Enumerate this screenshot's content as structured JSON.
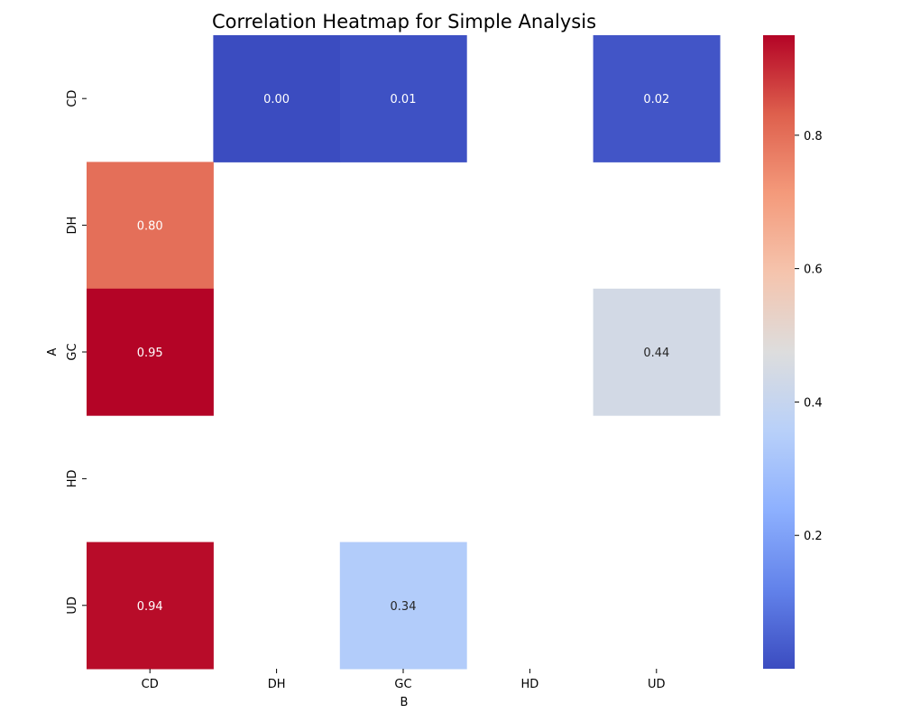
{
  "chart_data": {
    "type": "heatmap",
    "title": "Correlation Heatmap for Simple Analysis",
    "xlabel": "B",
    "ylabel": "A",
    "x_categories": [
      "CD",
      "DH",
      "GC",
      "HD",
      "UD"
    ],
    "y_categories": [
      "CD",
      "DH",
      "GC",
      "HD",
      "UD"
    ],
    "cells": [
      {
        "row": "CD",
        "col": "DH",
        "value": 0.0,
        "label": "0.00"
      },
      {
        "row": "CD",
        "col": "GC",
        "value": 0.01,
        "label": "0.01"
      },
      {
        "row": "CD",
        "col": "UD",
        "value": 0.02,
        "label": "0.02"
      },
      {
        "row": "DH",
        "col": "CD",
        "value": 0.8,
        "label": "0.80"
      },
      {
        "row": "GC",
        "col": "CD",
        "value": 0.95,
        "label": "0.95"
      },
      {
        "row": "GC",
        "col": "UD",
        "value": 0.44,
        "label": "0.44"
      },
      {
        "row": "UD",
        "col": "CD",
        "value": 0.94,
        "label": "0.94"
      },
      {
        "row": "UD",
        "col": "GC",
        "value": 0.34,
        "label": "0.34"
      }
    ],
    "colorbar": {
      "colormap": "coolwarm",
      "min": 0.0,
      "max": 0.95,
      "ticks": [
        0.2,
        0.4,
        0.6,
        0.8
      ],
      "tick_labels": [
        "0.2",
        "0.4",
        "0.6",
        "0.8"
      ]
    }
  }
}
